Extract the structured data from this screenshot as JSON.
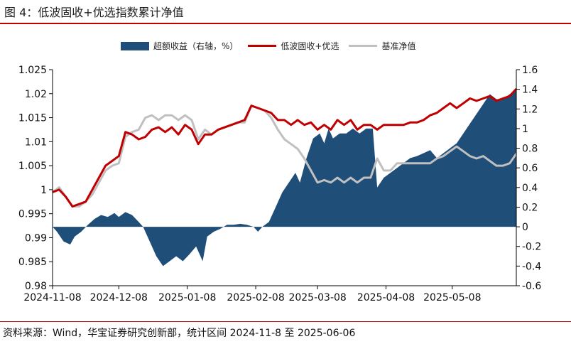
{
  "header": {
    "title": "图 4：低波固收+优选指数累计净值"
  },
  "footer": {
    "source": "资料来源：Wind，华宝证券研究创新部，统计区间 2024-11-8 至 2025-06-06"
  },
  "colors": {
    "bar": "#1f4e79",
    "index_line": "#c00000",
    "nav_line": "#c0c0c0",
    "axis": "#000000"
  },
  "chart_data": {
    "type": "line",
    "title": "低波固收+优选指数累计净值",
    "legend_position": "top-center",
    "x_tick_labels": [
      "2024-11-08",
      "2024-12-08",
      "2025-01-08",
      "2025-02-08",
      "2025-03-08",
      "2025-04-08",
      "2025-05-08"
    ],
    "x_tick_dates": [
      "2024-11-08",
      "2024-12-08",
      "2025-01-08",
      "2025-02-08",
      "2025-03-08",
      "2025-04-08",
      "2025-05-08"
    ],
    "x_range": [
      "2024-11-08",
      "2025-06-06"
    ],
    "left_axis": {
      "label": "",
      "ylim": [
        0.98,
        1.025
      ],
      "ticks": [
        0.98,
        0.985,
        0.99,
        0.995,
        1,
        1.005,
        1.01,
        1.015,
        1.02,
        1.025
      ],
      "tick_labels": [
        "0.98",
        "0.985",
        "0.99",
        "0.995",
        "1",
        "1.005",
        "1.01",
        "1.015",
        "1.02",
        "1.025"
      ]
    },
    "right_axis": {
      "label": "",
      "ylim": [
        -0.6,
        1.6
      ],
      "ticks": [
        -0.6,
        -0.4,
        -0.2,
        0,
        0.2,
        0.4,
        0.6,
        0.8,
        1,
        1.2,
        1.4,
        1.6
      ],
      "tick_labels": [
        "-0.6",
        "-0.4",
        "-0.2",
        "0",
        "0.2",
        "0.4",
        "0.6",
        "0.8",
        "1",
        "1.2",
        "1.4",
        "1.6"
      ]
    },
    "series": [
      {
        "name": "超额收益（右轴，%）",
        "type": "area",
        "axis": "right",
        "points": [
          [
            "2024-11-08",
            0
          ],
          [
            "2024-11-10",
            -0.05
          ],
          [
            "2024-11-13",
            -0.15
          ],
          [
            "2024-11-16",
            -0.18
          ],
          [
            "2024-11-18",
            -0.1
          ],
          [
            "2024-11-21",
            -0.05
          ],
          [
            "2024-11-24",
            0.02
          ],
          [
            "2024-11-27",
            0.08
          ],
          [
            "2024-11-30",
            0.12
          ],
          [
            "2024-12-03",
            0.1
          ],
          [
            "2024-12-06",
            0.14
          ],
          [
            "2024-12-08",
            0.1
          ],
          [
            "2024-12-11",
            0.15
          ],
          [
            "2024-12-14",
            0.12
          ],
          [
            "2024-12-17",
            0.05
          ],
          [
            "2024-12-19",
            0
          ],
          [
            "2024-12-22",
            -0.15
          ],
          [
            "2024-12-25",
            -0.3
          ],
          [
            "2024-12-28",
            -0.4
          ],
          [
            "2024-12-31",
            -0.35
          ],
          [
            "2025-01-03",
            -0.3
          ],
          [
            "2025-01-06",
            -0.35
          ],
          [
            "2025-01-09",
            -0.28
          ],
          [
            "2025-01-12",
            -0.2
          ],
          [
            "2025-01-15",
            -0.35
          ],
          [
            "2025-01-17",
            -0.1
          ],
          [
            "2025-01-20",
            -0.05
          ],
          [
            "2025-01-23",
            -0.02
          ],
          [
            "2025-01-26",
            0.02
          ],
          [
            "2025-01-29",
            0.02
          ],
          [
            "2025-02-01",
            0.03
          ],
          [
            "2025-02-04",
            0.02
          ],
          [
            "2025-02-07",
            0
          ],
          [
            "2025-02-09",
            -0.05
          ],
          [
            "2025-02-11",
            0
          ],
          [
            "2025-02-14",
            0.05
          ],
          [
            "2025-02-17",
            0.2
          ],
          [
            "2025-02-20",
            0.35
          ],
          [
            "2025-02-23",
            0.45
          ],
          [
            "2025-02-26",
            0.55
          ],
          [
            "2025-02-28",
            0.45
          ],
          [
            "2025-03-03",
            0.7
          ],
          [
            "2025-03-06",
            0.9
          ],
          [
            "2025-03-09",
            0.95
          ],
          [
            "2025-03-11",
            0.85
          ],
          [
            "2025-03-13",
            1
          ],
          [
            "2025-03-15",
            0.9
          ],
          [
            "2025-03-18",
            0.95
          ],
          [
            "2025-03-21",
            0.95
          ],
          [
            "2025-03-24",
            1
          ],
          [
            "2025-03-27",
            0.95
          ],
          [
            "2025-03-30",
            1
          ],
          [
            "2025-04-02",
            1
          ],
          [
            "2025-04-04",
            0.4
          ],
          [
            "2025-04-07",
            0.5
          ],
          [
            "2025-04-10",
            0.55
          ],
          [
            "2025-04-13",
            0.6
          ],
          [
            "2025-04-16",
            0.65
          ],
          [
            "2025-04-19",
            0.7
          ],
          [
            "2025-04-22",
            0.72
          ],
          [
            "2025-04-25",
            0.75
          ],
          [
            "2025-04-28",
            0.78
          ],
          [
            "2025-05-01",
            0.7
          ],
          [
            "2025-05-04",
            0.75
          ],
          [
            "2025-05-07",
            0.8
          ],
          [
            "2025-05-10",
            0.85
          ],
          [
            "2025-05-13",
            0.95
          ],
          [
            "2025-05-16",
            1.05
          ],
          [
            "2025-05-19",
            1.15
          ],
          [
            "2025-05-22",
            1.25
          ],
          [
            "2025-05-25",
            1.35
          ],
          [
            "2025-05-28",
            1.3
          ],
          [
            "2025-05-31",
            1.3
          ],
          [
            "2025-06-03",
            1.35
          ],
          [
            "2025-06-06",
            1.4
          ]
        ]
      },
      {
        "name": "低波固收+优选",
        "type": "line",
        "axis": "left",
        "points": [
          [
            "2024-11-08",
            0.9995
          ],
          [
            "2024-11-11",
            1.0
          ],
          [
            "2024-11-14",
            0.9985
          ],
          [
            "2024-11-17",
            0.9965
          ],
          [
            "2024-11-20",
            0.997
          ],
          [
            "2024-11-23",
            0.9975
          ],
          [
            "2024-11-26",
            1.0
          ],
          [
            "2024-11-29",
            1.0025
          ],
          [
            "2024-12-02",
            1.005
          ],
          [
            "2024-12-05",
            1.006
          ],
          [
            "2024-12-08",
            1.007
          ],
          [
            "2024-12-11",
            1.012
          ],
          [
            "2024-12-14",
            1.0115
          ],
          [
            "2024-12-17",
            1.0105
          ],
          [
            "2024-12-20",
            1.011
          ],
          [
            "2024-12-23",
            1.0125
          ],
          [
            "2024-12-26",
            1.013
          ],
          [
            "2024-12-29",
            1.012
          ],
          [
            "2025-01-01",
            1.013
          ],
          [
            "2025-01-04",
            1.0115
          ],
          [
            "2025-01-07",
            1.0135
          ],
          [
            "2025-01-10",
            1.0125
          ],
          [
            "2025-01-13",
            1.0095
          ],
          [
            "2025-01-16",
            1.0115
          ],
          [
            "2025-01-19",
            1.0115
          ],
          [
            "2025-01-22",
            1.0125
          ],
          [
            "2025-01-25",
            1.013
          ],
          [
            "2025-01-28",
            1.0135
          ],
          [
            "2025-01-31",
            1.014
          ],
          [
            "2025-02-03",
            1.0145
          ],
          [
            "2025-02-06",
            1.0175
          ],
          [
            "2025-02-09",
            1.017
          ],
          [
            "2025-02-12",
            1.0165
          ],
          [
            "2025-02-15",
            1.016
          ],
          [
            "2025-02-18",
            1.0145
          ],
          [
            "2025-02-21",
            1.0145
          ],
          [
            "2025-02-24",
            1.0135
          ],
          [
            "2025-02-27",
            1.0145
          ],
          [
            "2025-03-02",
            1.0135
          ],
          [
            "2025-03-05",
            1.014
          ],
          [
            "2025-03-08",
            1.0125
          ],
          [
            "2025-03-11",
            1.0135
          ],
          [
            "2025-03-14",
            1.0125
          ],
          [
            "2025-03-17",
            1.0145
          ],
          [
            "2025-03-20",
            1.0135
          ],
          [
            "2025-03-23",
            1.0145
          ],
          [
            "2025-03-26",
            1.0125
          ],
          [
            "2025-03-29",
            1.0135
          ],
          [
            "2025-04-01",
            1.0135
          ],
          [
            "2025-04-04",
            1.0125
          ],
          [
            "2025-04-07",
            1.0135
          ],
          [
            "2025-04-10",
            1.0135
          ],
          [
            "2025-04-13",
            1.0135
          ],
          [
            "2025-04-16",
            1.0135
          ],
          [
            "2025-04-19",
            1.014
          ],
          [
            "2025-04-22",
            1.014
          ],
          [
            "2025-04-25",
            1.0145
          ],
          [
            "2025-04-28",
            1.0155
          ],
          [
            "2025-05-01",
            1.016
          ],
          [
            "2025-05-04",
            1.017
          ],
          [
            "2025-05-07",
            1.018
          ],
          [
            "2025-05-10",
            1.017
          ],
          [
            "2025-05-13",
            1.018
          ],
          [
            "2025-05-16",
            1.019
          ],
          [
            "2025-05-19",
            1.0185
          ],
          [
            "2025-05-22",
            1.019
          ],
          [
            "2025-05-25",
            1.0195
          ],
          [
            "2025-05-28",
            1.0185
          ],
          [
            "2025-05-31",
            1.019
          ],
          [
            "2025-06-03",
            1.0195
          ],
          [
            "2025-06-06",
            1.021
          ]
        ]
      },
      {
        "name": "基准净值",
        "type": "line",
        "axis": "left",
        "points": [
          [
            "2024-11-08",
            0.9995
          ],
          [
            "2024-11-11",
            1.0005
          ],
          [
            "2024-11-14",
            0.9985
          ],
          [
            "2024-11-17",
            0.9965
          ],
          [
            "2024-11-20",
            0.9965
          ],
          [
            "2024-11-23",
            0.9975
          ],
          [
            "2024-11-26",
            0.999
          ],
          [
            "2024-11-29",
            1.0015
          ],
          [
            "2024-12-02",
            1.004
          ],
          [
            "2024-12-05",
            1.005
          ],
          [
            "2024-12-08",
            1.0055
          ],
          [
            "2024-12-11",
            1.011
          ],
          [
            "2024-12-14",
            1.012
          ],
          [
            "2024-12-17",
            1.0125
          ],
          [
            "2024-12-20",
            1.015
          ],
          [
            "2024-12-23",
            1.0155
          ],
          [
            "2024-12-26",
            1.0145
          ],
          [
            "2024-12-29",
            1.0155
          ],
          [
            "2025-01-01",
            1.0155
          ],
          [
            "2025-01-04",
            1.0145
          ],
          [
            "2025-01-07",
            1.0155
          ],
          [
            "2025-01-10",
            1.0145
          ],
          [
            "2025-01-13",
            1.0105
          ],
          [
            "2025-01-16",
            1.0125
          ],
          [
            "2025-01-19",
            1.0115
          ],
          [
            "2025-01-22",
            1.0125
          ],
          [
            "2025-01-25",
            1.013
          ],
          [
            "2025-01-28",
            1.0135
          ],
          [
            "2025-01-31",
            1.014
          ],
          [
            "2025-02-03",
            1.014
          ],
          [
            "2025-02-06",
            1.0175
          ],
          [
            "2025-02-09",
            1.017
          ],
          [
            "2025-02-12",
            1.0165
          ],
          [
            "2025-02-15",
            1.015
          ],
          [
            "2025-02-18",
            1.0125
          ],
          [
            "2025-02-21",
            1.0105
          ],
          [
            "2025-02-24",
            1.0095
          ],
          [
            "2025-02-27",
            1.0085
          ],
          [
            "2025-03-02",
            1.0065
          ],
          [
            "2025-03-05",
            1.004
          ],
          [
            "2025-03-08",
            1.0015
          ],
          [
            "2025-03-11",
            1.002
          ],
          [
            "2025-03-14",
            1.0015
          ],
          [
            "2025-03-17",
            1.0025
          ],
          [
            "2025-03-20",
            1.0015
          ],
          [
            "2025-03-23",
            1.0025
          ],
          [
            "2025-03-26",
            1.0015
          ],
          [
            "2025-03-29",
            1.0025
          ],
          [
            "2025-04-01",
            1.0025
          ],
          [
            "2025-04-04",
            1.0065
          ],
          [
            "2025-04-07",
            1.004
          ],
          [
            "2025-04-10",
            1.004
          ],
          [
            "2025-04-13",
            1.0055
          ],
          [
            "2025-04-16",
            1.0055
          ],
          [
            "2025-04-19",
            1.0055
          ],
          [
            "2025-04-22",
            1.0055
          ],
          [
            "2025-04-25",
            1.0055
          ],
          [
            "2025-04-28",
            1.0055
          ],
          [
            "2025-05-01",
            1.0065
          ],
          [
            "2025-05-04",
            1.007
          ],
          [
            "2025-05-07",
            1.008
          ],
          [
            "2025-05-10",
            1.009
          ],
          [
            "2025-05-13",
            1.008
          ],
          [
            "2025-05-16",
            1.007
          ],
          [
            "2025-05-19",
            1.0065
          ],
          [
            "2025-05-22",
            1.007
          ],
          [
            "2025-05-25",
            1.006
          ],
          [
            "2025-05-28",
            1.005
          ],
          [
            "2025-05-31",
            1.005
          ],
          [
            "2025-06-03",
            1.0055
          ],
          [
            "2025-06-06",
            1.0075
          ]
        ]
      }
    ]
  }
}
